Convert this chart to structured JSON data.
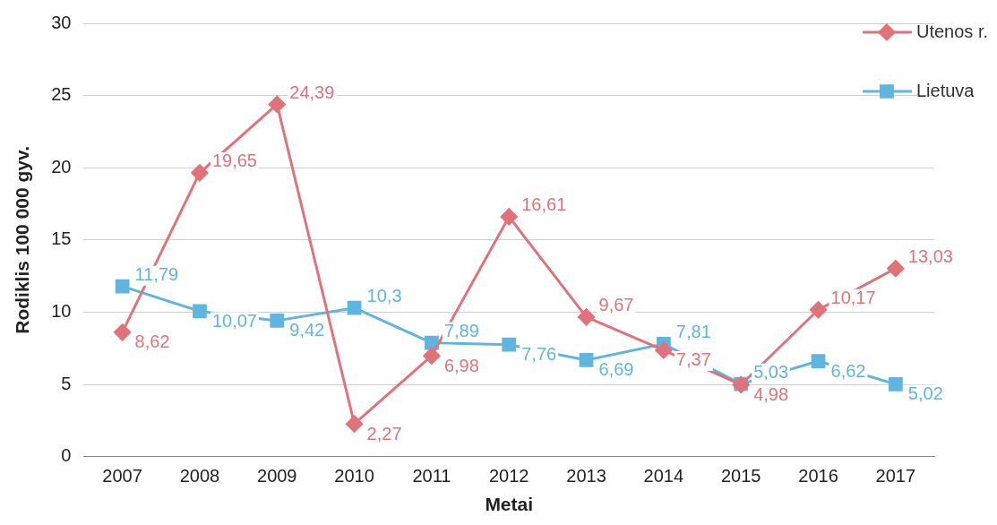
{
  "chart_data": {
    "type": "line",
    "xlabel": "Metai",
    "ylabel": "Rodiklis 100 000 gyv.",
    "categories": [
      "2007",
      "2008",
      "2009",
      "2010",
      "2011",
      "2012",
      "2013",
      "2014",
      "2015",
      "2016",
      "2017"
    ],
    "series": [
      {
        "name": "Utenos r.",
        "color": "#e0737a",
        "marker": "diamond",
        "values": [
          8.62,
          19.65,
          24.39,
          2.27,
          6.98,
          16.61,
          9.67,
          7.37,
          4.98,
          10.17,
          13.03
        ],
        "value_labels": [
          "8,62",
          "19,65",
          "24,39",
          "2,27",
          "6,98",
          "16,61",
          "9,67",
          "7,37",
          "4,98",
          "10,17",
          "13,03"
        ]
      },
      {
        "name": "Lietuva",
        "color": "#5fb5e0",
        "marker": "square",
        "values": [
          11.79,
          10.07,
          9.42,
          10.3,
          7.89,
          7.76,
          6.69,
          7.81,
          5.03,
          6.62,
          5.02
        ],
        "value_labels": [
          "11,79",
          "10,07",
          "9,42",
          "10,3",
          "7,89",
          "7,76",
          "6,69",
          "7,81",
          "5,03",
          "6,62",
          "5,02"
        ]
      }
    ],
    "ylim": [
      0,
      30
    ],
    "yticks": [
      0,
      5,
      10,
      15,
      20,
      25,
      30
    ],
    "grid": "y",
    "legend": "top right",
    "line_style": "solid"
  }
}
